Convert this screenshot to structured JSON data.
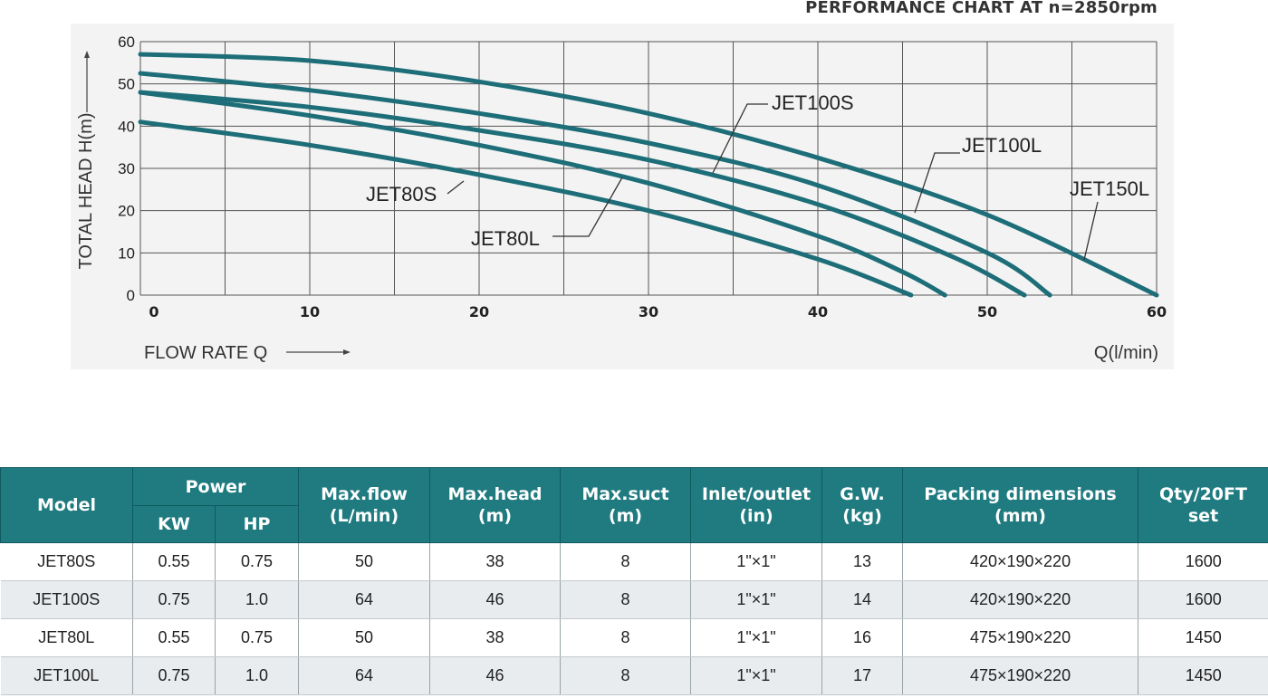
{
  "chart_data": {
    "type": "line",
    "title": "PERFORMANCE CHART AT n=2850rpm",
    "xlabel": "FLOW RATE Q",
    "xunit": "Q(l/min)",
    "ylabel": "TOTAL HEAD H(m)",
    "xlim": [
      0,
      60
    ],
    "ylim": [
      0,
      60
    ],
    "xticks": [
      0,
      10,
      20,
      30,
      40,
      50,
      60
    ],
    "yticks": [
      0,
      10,
      20,
      30,
      40,
      50,
      60
    ],
    "grid": true,
    "color": "#1d6e78",
    "series": [
      {
        "name": "JET80S",
        "x": [
          0,
          10,
          20,
          30,
          40,
          45.5
        ],
        "y": [
          41,
          35.5,
          28.5,
          20,
          8.5,
          0
        ]
      },
      {
        "name": "JET80L",
        "x": [
          0,
          10,
          20,
          30,
          40,
          45,
          47.5
        ],
        "y": [
          48,
          42.5,
          35.5,
          26.5,
          14,
          5.5,
          0
        ]
      },
      {
        "name": "JET100S",
        "x": [
          0,
          10,
          20,
          30,
          40,
          48,
          52.2
        ],
        "y": [
          48,
          44.5,
          39,
          32,
          21.5,
          9,
          0
        ]
      },
      {
        "name": "JET100L",
        "x": [
          0,
          10,
          20,
          30,
          40,
          50,
          53.7
        ],
        "y": [
          52.5,
          48.5,
          43,
          36,
          26,
          10,
          0
        ]
      },
      {
        "name": "JET150L",
        "x": [
          0,
          10,
          20,
          30,
          40,
          50,
          60
        ],
        "y": [
          57,
          55.5,
          50.5,
          43,
          32.5,
          19,
          0
        ]
      }
    ],
    "annotations": [
      {
        "text": "JET80S",
        "x": 19.3,
        "y": 27.8
      },
      {
        "text": "JET80L",
        "x": 27.6,
        "y": 25.2
      },
      {
        "text": "JET100S",
        "x": 33.6,
        "y": 29.0
      },
      {
        "text": "JET100L",
        "x": 45.5,
        "y": 19.5
      },
      {
        "text": "JET150L",
        "x": 55.2,
        "y": 8.7
      }
    ]
  },
  "table": {
    "headers": {
      "model": "Model",
      "power": "Power",
      "kw": "KW",
      "hp": "HP",
      "max_flow": [
        "Max.flow",
        "(L/min)"
      ],
      "max_head": [
        "Max.head",
        "(m)"
      ],
      "max_suct": [
        "Max.suct",
        "(m)"
      ],
      "inlet_outlet": [
        "Inlet/outlet",
        "(in)"
      ],
      "gw": [
        "G.W.",
        "(kg)"
      ],
      "packing": [
        "Packing dimensions",
        "(mm)"
      ],
      "qty": [
        "Qty/20FT",
        "set"
      ]
    },
    "rows": [
      [
        "JET80S",
        "0.55",
        "0.75",
        "50",
        "38",
        "8",
        "1\"×1\"",
        "13",
        "420×190×220",
        "1600"
      ],
      [
        "JET100S",
        "0.75",
        "1.0",
        "64",
        "46",
        "8",
        "1\"×1\"",
        "14",
        "420×190×220",
        "1600"
      ],
      [
        "JET80L",
        "0.55",
        "0.75",
        "50",
        "38",
        "8",
        "1\"×1\"",
        "16",
        "475×190×220",
        "1450"
      ],
      [
        "JET100L",
        "0.75",
        "1.0",
        "64",
        "46",
        "8",
        "1\"×1\"",
        "17",
        "475×190×220",
        "1450"
      ]
    ]
  },
  "colors": {
    "header_bg": "#1f7b80",
    "curve": "#1d6e78",
    "row_alt": "#e9ecef"
  }
}
